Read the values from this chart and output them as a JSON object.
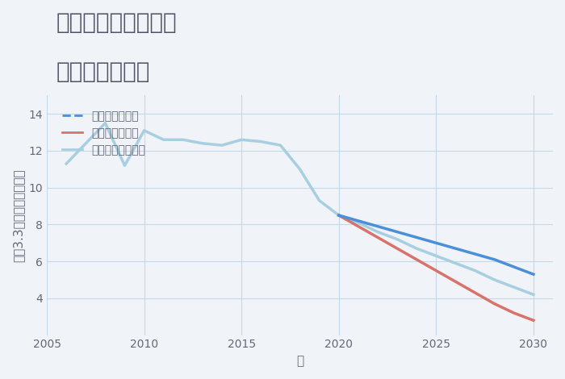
{
  "title_line1": "岐阜県関市西田原の",
  "title_line2": "土地の価格推移",
  "xlabel": "年",
  "ylabel": "坪（3.3㎡）単価（万円）",
  "background_color": "#f0f4f8",
  "plot_bg_color": "#f0f4f8",
  "ylim": [
    2,
    15
  ],
  "xlim": [
    2005,
    2031
  ],
  "yticks": [
    4,
    6,
    8,
    10,
    12,
    14
  ],
  "xticks": [
    2005,
    2010,
    2015,
    2020,
    2025,
    2030
  ],
  "grid_color": "#c5d8ea",
  "series": {
    "historical": {
      "years": [
        2006,
        2007,
        2008,
        2009,
        2010,
        2011,
        2012,
        2013,
        2014,
        2015,
        2016,
        2017,
        2018,
        2019,
        2020
      ],
      "values": [
        11.3,
        12.4,
        13.5,
        11.2,
        13.1,
        12.6,
        12.6,
        12.4,
        12.3,
        12.6,
        12.5,
        12.3,
        11.0,
        9.3,
        8.5
      ],
      "color": "#a8cfe0",
      "linewidth": 2.5,
      "linestyle": "-"
    },
    "good": {
      "years": [
        2020,
        2021,
        2022,
        2023,
        2024,
        2025,
        2026,
        2027,
        2028,
        2029,
        2030
      ],
      "values": [
        8.5,
        8.2,
        7.9,
        7.6,
        7.3,
        7.0,
        6.7,
        6.4,
        6.1,
        5.7,
        5.3
      ],
      "color": "#4a90d9",
      "linewidth": 2.5,
      "linestyle": "-",
      "label": "グッドシナリオ"
    },
    "bad": {
      "years": [
        2020,
        2021,
        2022,
        2023,
        2024,
        2025,
        2026,
        2027,
        2028,
        2029,
        2030
      ],
      "values": [
        8.5,
        7.9,
        7.3,
        6.7,
        6.1,
        5.5,
        4.9,
        4.3,
        3.7,
        3.2,
        2.8
      ],
      "color": "#d9726a",
      "linewidth": 2.5,
      "linestyle": "-",
      "label": "バッドシナリオ"
    },
    "normal": {
      "years": [
        2020,
        2021,
        2022,
        2023,
        2024,
        2025,
        2026,
        2027,
        2028,
        2029,
        2030
      ],
      "values": [
        8.5,
        8.1,
        7.6,
        7.2,
        6.7,
        6.3,
        5.9,
        5.5,
        5.0,
        4.6,
        4.2
      ],
      "color": "#a8cfe0",
      "linewidth": 2.5,
      "linestyle": "-",
      "label": "ノーマルシナリオ"
    }
  },
  "legend_good_color": "#4a90d9",
  "legend_bad_color": "#d9726a",
  "legend_normal_color": "#a8cfe0",
  "legend_fontsize": 10,
  "title_fontsize": 20,
  "title_color": "#555566",
  "axis_fontsize": 11,
  "tick_fontsize": 10,
  "tick_color": "#666677"
}
